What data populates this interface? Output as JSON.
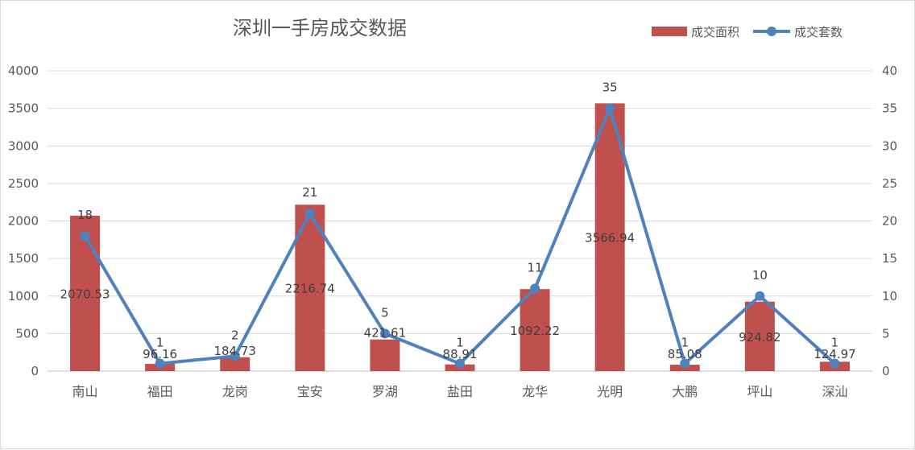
{
  "chart_data": {
    "type": "bar+line",
    "title": "深圳一手房成交数据",
    "categories": [
      "南山",
      "福田",
      "龙岗",
      "宝安",
      "罗湖",
      "盐田",
      "龙华",
      "光明",
      "大鹏",
      "坪山",
      "深汕"
    ],
    "series": [
      {
        "name": "成交面积",
        "type": "bar",
        "axis": "left",
        "color": "#c0504d",
        "values": [
          2070.53,
          96.16,
          184.73,
          2216.74,
          421.61,
          88.91,
          1092.22,
          3566.94,
          85.08,
          924.82,
          124.97
        ],
        "labels": [
          "2070.53",
          "96.16",
          "184.73",
          "2216.74",
          "421.61",
          "88.91",
          "1092.22",
          "3566.94",
          "85.08",
          "924.82",
          "124.97"
        ]
      },
      {
        "name": "成交套数",
        "type": "line",
        "axis": "right",
        "color": "#4f81bd",
        "values": [
          18,
          1,
          2,
          21,
          5,
          1,
          11,
          35,
          1,
          10,
          1
        ],
        "labels": [
          "18",
          "1",
          "2",
          "21",
          "5",
          "1",
          "11",
          "35",
          "1",
          "10",
          "1"
        ]
      }
    ],
    "y_left": {
      "min": 0,
      "max": 4000,
      "ticks": [
        "0",
        "500",
        "1000",
        "1500",
        "2000",
        "2500",
        "3000",
        "3500",
        "4000"
      ]
    },
    "y_right": {
      "min": 0,
      "max": 40,
      "ticks": [
        "0",
        "5",
        "10",
        "15",
        "20",
        "25",
        "30",
        "35",
        "40"
      ]
    },
    "grid": true,
    "legend": "top-right"
  }
}
